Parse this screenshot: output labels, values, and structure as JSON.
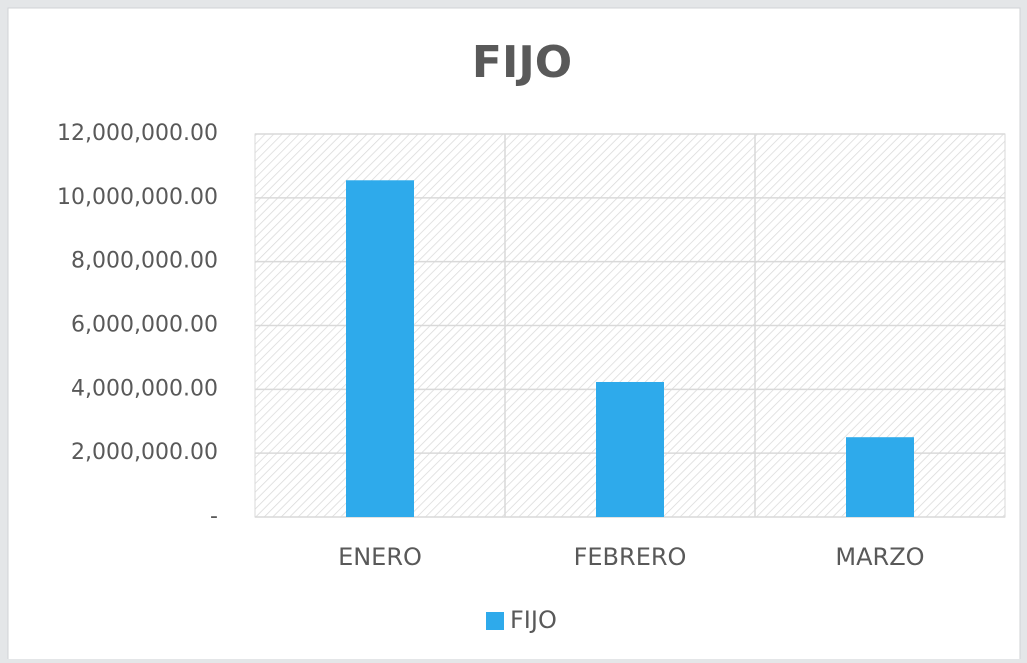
{
  "chart_data": {
    "type": "bar",
    "title": "FIJO",
    "categories": [
      "ENERO",
      "FEBRERO",
      "MARZO"
    ],
    "series": [
      {
        "name": "FIJO",
        "color": "#2eaaeb",
        "values": [
          10550000,
          4230000,
          2500000
        ]
      }
    ],
    "ylim": [
      0,
      12000000
    ],
    "yticks": [
      {
        "value": 0,
        "label": "-"
      },
      {
        "value": 2000000,
        "label": "2,000,000.00"
      },
      {
        "value": 4000000,
        "label": "4,000,000.00"
      },
      {
        "value": 6000000,
        "label": "6,000,000.00"
      },
      {
        "value": 8000000,
        "label": "8,000,000.00"
      },
      {
        "value": 10000000,
        "label": "10,000,000.00"
      },
      {
        "value": 12000000,
        "label": "12,000,000.00"
      }
    ],
    "grid": true,
    "legend": "bottom"
  }
}
